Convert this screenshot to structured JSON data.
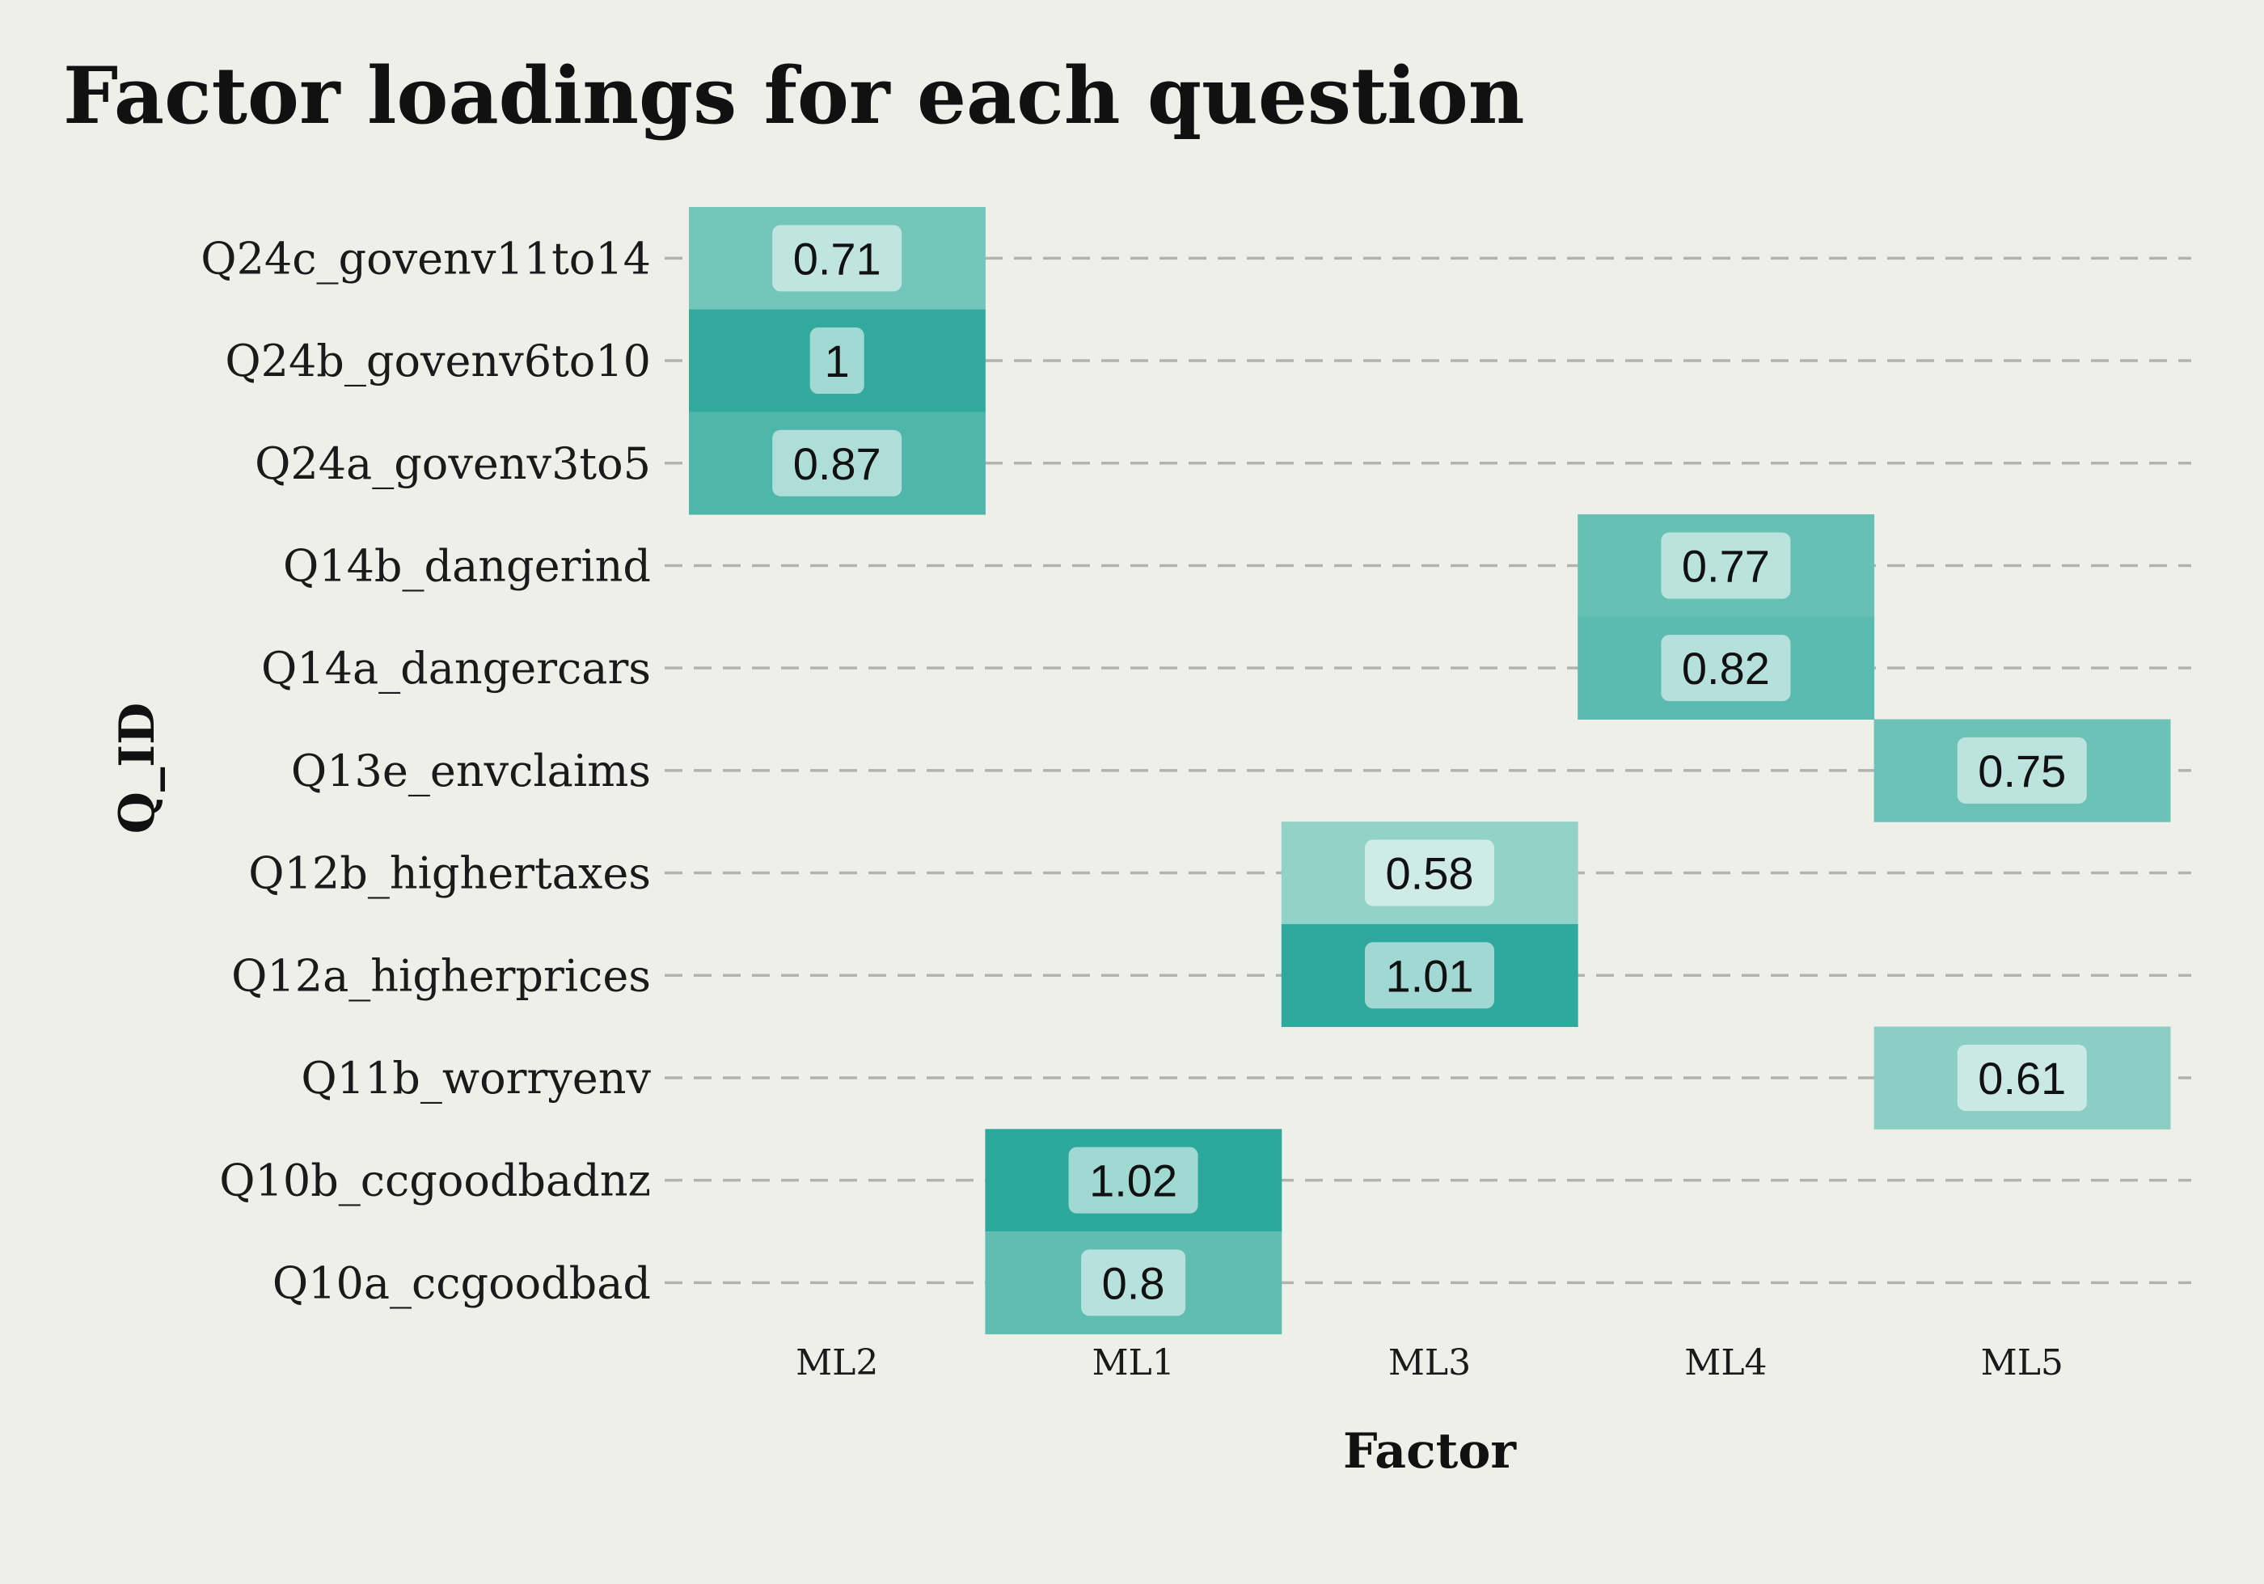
{
  "chart_data": {
    "type": "heatmap",
    "title": "Factor loadings for each question",
    "xlabel": "Factor",
    "ylabel": "Q_ID",
    "x_categories": [
      "ML2",
      "ML1",
      "ML3",
      "ML4",
      "ML5"
    ],
    "y_categories": [
      "Q24c_govenv11to14",
      "Q24b_govenv6to10",
      "Q24a_govenv3to5",
      "Q14b_dangerind",
      "Q14a_dangercars",
      "Q13e_envclaims",
      "Q12b_highertaxes",
      "Q12a_higherprices",
      "Q11b_worryenv",
      "Q10b_ccgoodbadnz",
      "Q10a_ccgoodbad"
    ],
    "cells": [
      {
        "y": "Q24c_govenv11to14",
        "x": "ML2",
        "value": 0.71,
        "label": "0.71"
      },
      {
        "y": "Q24b_govenv6to10",
        "x": "ML2",
        "value": 1.0,
        "label": "1"
      },
      {
        "y": "Q24a_govenv3to5",
        "x": "ML2",
        "value": 0.87,
        "label": "0.87"
      },
      {
        "y": "Q14b_dangerind",
        "x": "ML4",
        "value": 0.77,
        "label": "0.77"
      },
      {
        "y": "Q14a_dangercars",
        "x": "ML4",
        "value": 0.82,
        "label": "0.82"
      },
      {
        "y": "Q13e_envclaims",
        "x": "ML5",
        "value": 0.75,
        "label": "0.75"
      },
      {
        "y": "Q12b_highertaxes",
        "x": "ML3",
        "value": 0.58,
        "label": "0.58"
      },
      {
        "y": "Q12a_higherprices",
        "x": "ML3",
        "value": 1.01,
        "label": "1.01"
      },
      {
        "y": "Q11b_worryenv",
        "x": "ML5",
        "value": 0.61,
        "label": "0.61"
      },
      {
        "y": "Q10b_ccgoodbadnz",
        "x": "ML1",
        "value": 1.02,
        "label": "1.02"
      },
      {
        "y": "Q10a_ccgoodbad",
        "x": "ML1",
        "value": 0.8,
        "label": "0.8"
      }
    ],
    "color_low": "#92d2c7",
    "color_high": "#2da89c",
    "background": "#efefea",
    "grid": "dashed horizontal",
    "legend": "none"
  }
}
